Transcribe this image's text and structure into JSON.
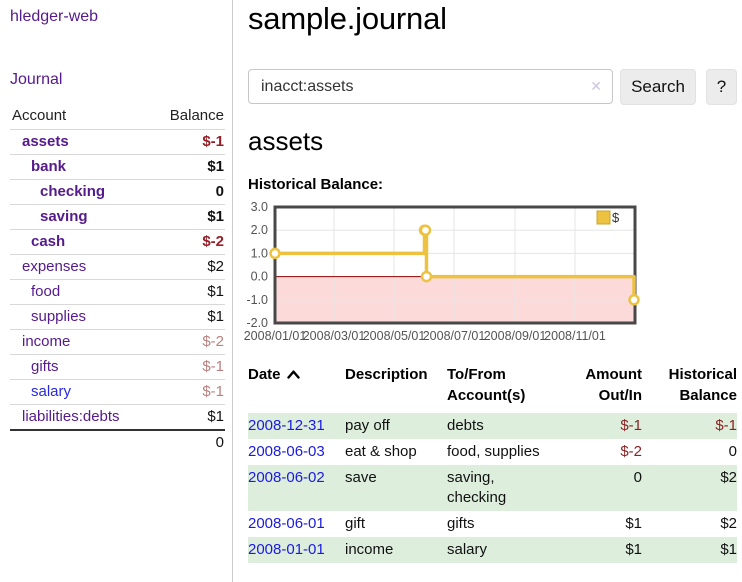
{
  "app": {
    "brand": "hledger-web",
    "nav": {
      "journal": "Journal"
    }
  },
  "sidebar": {
    "accounts_table": {
      "col_account": "Account",
      "col_balance": "Balance",
      "rows": [
        {
          "name": "assets",
          "balance": "$-1",
          "depth": 1
        },
        {
          "name": "bank",
          "balance": "$1",
          "depth": 2
        },
        {
          "name": "checking",
          "balance": "0",
          "depth": 3
        },
        {
          "name": "saving",
          "balance": "$1",
          "depth": 3
        },
        {
          "name": "cash",
          "balance": "$-2",
          "depth": 2
        },
        {
          "name": "expenses",
          "balance": "$2",
          "depth": 1
        },
        {
          "name": "food",
          "balance": "$1",
          "depth": 2
        },
        {
          "name": "supplies",
          "balance": "$1",
          "depth": 2
        },
        {
          "name": "income",
          "balance": "$-2",
          "depth": 1
        },
        {
          "name": "gifts",
          "balance": "$-1",
          "depth": 2
        },
        {
          "name": "salary",
          "balance": "$-1",
          "depth": 2
        },
        {
          "name": "liabilities:debts",
          "balance": "$1",
          "depth": 1
        }
      ],
      "total": "0"
    }
  },
  "main": {
    "title": "sample.journal",
    "search": {
      "value": "inacct:assets",
      "clear_icon": "✕",
      "button_label": "Search",
      "help_label": "?"
    },
    "account_heading": "assets"
  },
  "chart_data": {
    "type": "line",
    "style": "step",
    "title": "Historical Balance:",
    "series": [
      {
        "name": "$",
        "color": "#edc240",
        "points": [
          [
            "2008-01-01",
            1
          ],
          [
            "2008-06-01",
            2
          ],
          [
            "2008-06-02",
            2
          ],
          [
            "2008-06-03",
            0
          ],
          [
            "2008-12-31",
            -1
          ]
        ]
      }
    ],
    "x_domain": [
      "2008-01-01",
      "2009-01-01"
    ],
    "y_domain": [
      -2,
      3
    ],
    "x_ticks": [
      {
        "date": "2008-01-01",
        "label": "2008/01/01"
      },
      {
        "date": "2008-03-01",
        "label": "2008/03/01"
      },
      {
        "date": "2008-05-01",
        "label": "2008/05/01"
      },
      {
        "date": "2008-07-01",
        "label": "2008/07/01"
      },
      {
        "date": "2008-09-01",
        "label": "2008/09/01"
      },
      {
        "date": "2008-11-01",
        "label": "2008/11/01"
      }
    ],
    "y_ticks": [
      {
        "v": 3,
        "label": "3.0"
      },
      {
        "v": 2,
        "label": "2.0"
      },
      {
        "v": 1,
        "label": "1.0"
      },
      {
        "v": 0,
        "label": "0.0"
      },
      {
        "v": -1,
        "label": "-1.0"
      },
      {
        "v": -2,
        "label": "-2.0"
      }
    ],
    "grid": true,
    "grid_color": "#e5e5e5",
    "axis_text_color": "#545454",
    "border_color": "#484848",
    "zero_line_color": "#8b0000",
    "negative_region_fill": "#fcdada",
    "legend": {
      "label": "$",
      "position": "top-right",
      "swatch_border": "#c9a42e"
    }
  },
  "register": {
    "headers": {
      "date": "Date",
      "description": "Description",
      "accounts": "To/From Account(s)",
      "amount": "Amount Out/In",
      "balance": "Historical Balance"
    },
    "rows": [
      {
        "date": "2008-12-31",
        "description": "pay off",
        "accounts": "debts",
        "amount": "$-1",
        "balance": "$-1"
      },
      {
        "date": "2008-06-03",
        "description": "eat & shop",
        "accounts": "food, supplies",
        "amount": "$-2",
        "balance": "0"
      },
      {
        "date": "2008-06-02",
        "description": "save",
        "accounts": "saving, checking",
        "amount": "0",
        "balance": "$2"
      },
      {
        "date": "2008-06-01",
        "description": "gift",
        "accounts": "gifts",
        "amount": "$1",
        "balance": "$2"
      },
      {
        "date": "2008-01-01",
        "description": "income",
        "accounts": "salary",
        "amount": "$1",
        "balance": "$1"
      }
    ]
  },
  "colors": {
    "link_purple": "#551a8b",
    "link_blue": "#2929e0",
    "date_blue": "#1a1ae0",
    "neg_strong": "#941f27",
    "neg_muted": "#bb7f7f",
    "row_stripe": "#ddeedd",
    "button_bg": "#ececec",
    "chart_line": "#edc240"
  }
}
